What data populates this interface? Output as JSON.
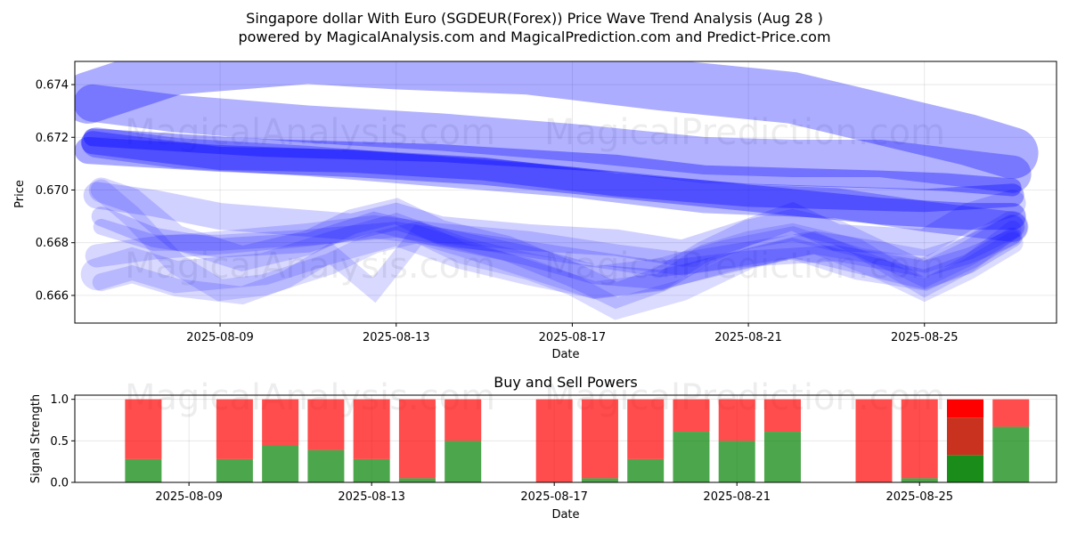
{
  "figure": {
    "title_line1": "Singapore dollar With Euro (SGDEUR(Forex)) Price Wave Trend Analysis (Aug 28 )",
    "title_line2": "powered by MagicalAnalysis.com and MagicalPrediction.com and Predict-Price.com",
    "watermarks": [
      "MagicalAnalysis.com",
      "MagicalPrediction.com"
    ]
  },
  "colors": {
    "wave": "#0000ff",
    "buy": "#008000",
    "sell": "#ff0000",
    "grid": "#b0b0b0"
  },
  "chart_data": [
    {
      "type": "line",
      "title": "",
      "xlabel": "Date",
      "ylabel": "Price",
      "x_tick_labels": [
        "2025-08-09",
        "2025-08-13",
        "2025-08-17",
        "2025-08-21",
        "2025-08-25"
      ],
      "x_tick_days": [
        9,
        13,
        17,
        21,
        25
      ],
      "xlim": [
        5.7,
        28.0
      ],
      "y_ticks": [
        0.666,
        0.668,
        0.67,
        0.672,
        0.674
      ],
      "y_tick_labels": [
        "0.666",
        "0.668",
        "0.670",
        "0.672",
        "0.674"
      ],
      "ylim": [
        0.66495,
        0.67488
      ],
      "series": [
        {
          "name": "wave-1",
          "x": [
            6.0,
            8.0,
            11.0,
            13.0,
            16.0,
            19.0,
            22.0,
            24.0,
            26.0,
            27.0
          ],
          "y": [
            0.6735,
            0.6746,
            0.675,
            0.6748,
            0.6746,
            0.674,
            0.6735,
            0.6727,
            0.6719,
            0.6714
          ]
        },
        {
          "name": "wave-2",
          "x": [
            6.0,
            9.0,
            12.0,
            15.0,
            18.0,
            21.0,
            24.0,
            26.0,
            27.0
          ],
          "y": [
            0.6715,
            0.6712,
            0.671,
            0.6707,
            0.6702,
            0.6697,
            0.6692,
            0.669,
            0.669
          ]
        },
        {
          "name": "wave-3",
          "x": [
            6.1,
            8.0,
            11.0,
            14.0,
            17.0,
            20.0,
            22.0,
            24.0,
            26.0,
            27.0
          ],
          "y": [
            0.6733,
            0.6729,
            0.6725,
            0.6722,
            0.6718,
            0.6713,
            0.6712,
            0.6712,
            0.6708,
            0.6706
          ]
        },
        {
          "name": "wave-4",
          "x": [
            6.1,
            9.0,
            12.0,
            15.0,
            18.0,
            21.0,
            23.0,
            25.0,
            26.0,
            27.0
          ],
          "y": [
            0.6718,
            0.6712,
            0.6711,
            0.6708,
            0.6702,
            0.6698,
            0.6697,
            0.6696,
            0.6697,
            0.6698
          ]
        },
        {
          "name": "wave-5",
          "x": [
            6.1,
            8.0,
            10.0,
            12.0,
            14.0,
            16.0,
            18.0,
            20.0,
            22.0,
            24.0,
            25.5,
            27.0
          ],
          "y": [
            0.672,
            0.6718,
            0.6716,
            0.6715,
            0.6714,
            0.6712,
            0.671,
            0.6706,
            0.6705,
            0.6704,
            0.6703,
            0.6701
          ]
        },
        {
          "name": "wave-6",
          "x": [
            6.2,
            8.0,
            11.0,
            14.0,
            17.0,
            20.0,
            23.0,
            25.0,
            27.0
          ],
          "y": [
            0.6718,
            0.6714,
            0.6711,
            0.6707,
            0.6703,
            0.6697,
            0.6695,
            0.669,
            0.6686
          ]
        },
        {
          "name": "wave-7",
          "x": [
            6.2,
            7.5,
            9.0,
            10.5,
            12.0,
            13.0,
            14.0,
            16.0,
            18.0,
            19.5,
            21.0,
            22.0,
            23.0,
            25.0,
            26.0,
            27.0
          ],
          "y": [
            0.6698,
            0.6695,
            0.669,
            0.6688,
            0.6686,
            0.669,
            0.6685,
            0.6682,
            0.668,
            0.6676,
            0.6684,
            0.669,
            0.6682,
            0.668,
            0.669,
            0.6695
          ]
        },
        {
          "name": "wave-8",
          "x": [
            6.2,
            7.5,
            9.0,
            11.0,
            12.5,
            14.0,
            16.0,
            18.0,
            19.5,
            21.0,
            22.5,
            24.0,
            25.0,
            26.0,
            27.0
          ],
          "y": [
            0.6675,
            0.6678,
            0.668,
            0.6683,
            0.6686,
            0.6683,
            0.668,
            0.6675,
            0.6672,
            0.6676,
            0.668,
            0.6676,
            0.6673,
            0.6678,
            0.6686
          ]
        },
        {
          "name": "wave-9",
          "x": [
            6.2,
            7.0,
            8.0,
            10.0,
            11.5,
            13.0,
            14.5,
            16.0,
            17.5,
            19.0,
            20.5,
            22.0,
            23.5,
            25.0,
            26.0,
            27.0
          ],
          "y": [
            0.6668,
            0.6672,
            0.6667,
            0.667,
            0.6678,
            0.6685,
            0.6676,
            0.667,
            0.6665,
            0.6668,
            0.6675,
            0.668,
            0.6672,
            0.6668,
            0.6676,
            0.6686
          ]
        },
        {
          "name": "wave-10",
          "x": [
            6.3,
            7.5,
            9.0,
            11.0,
            12.5,
            14.0,
            16.0,
            17.5,
            19.0,
            20.5,
            22.0,
            24.0,
            25.0,
            26.0,
            27.0
          ],
          "y": [
            0.669,
            0.6682,
            0.6678,
            0.668,
            0.6688,
            0.6682,
            0.6675,
            0.6668,
            0.6666,
            0.6672,
            0.6678,
            0.667,
            0.6666,
            0.6672,
            0.6682
          ]
        },
        {
          "name": "wave-11",
          "x": [
            6.3,
            7.0,
            8.0,
            9.5,
            11.0,
            12.0,
            13.0,
            14.0,
            15.5,
            17.0,
            18.0,
            19.0,
            20.0,
            21.0,
            22.0,
            23.0,
            24.0,
            25.0,
            26.0,
            27.0
          ],
          "y": [
            0.67,
            0.6696,
            0.6682,
            0.6674,
            0.668,
            0.6688,
            0.6692,
            0.6684,
            0.6678,
            0.6668,
            0.666,
            0.6666,
            0.6676,
            0.6684,
            0.6688,
            0.6684,
            0.6676,
            0.6668,
            0.6676,
            0.6686
          ]
        },
        {
          "name": "wave-12",
          "x": [
            6.3,
            7.0,
            8.0,
            9.0,
            10.0,
            11.5,
            12.5,
            13.5,
            14.5,
            16.0,
            17.0,
            18.0,
            19.5,
            21.0,
            22.5,
            24.0,
            25.0,
            26.0,
            27.0
          ],
          "y": [
            0.67,
            0.669,
            0.6672,
            0.6662,
            0.6664,
            0.6672,
            0.668,
            0.6684,
            0.6676,
            0.667,
            0.6664,
            0.6655,
            0.6662,
            0.6674,
            0.668,
            0.667,
            0.6662,
            0.667,
            0.668
          ]
        },
        {
          "name": "wave-13",
          "x": [
            6.3,
            7.0,
            8.0,
            9.5,
            10.5,
            11.5,
            12.5,
            13.5,
            14.5,
            16.0,
            17.5,
            19.0,
            20.0,
            21.0,
            22.0,
            23.5,
            25.0,
            26.0,
            27.0
          ],
          "y": [
            0.6665,
            0.6668,
            0.6663,
            0.666,
            0.6666,
            0.6676,
            0.6662,
            0.6683,
            0.6678,
            0.667,
            0.6662,
            0.6665,
            0.6676,
            0.6681,
            0.6684,
            0.6678,
            0.6663,
            0.6672,
            0.6685
          ]
        },
        {
          "name": "wave-14",
          "x": [
            6.3,
            7.5,
            9.0,
            11.0,
            13.0,
            15.0,
            17.0,
            19.0,
            21.0,
            23.0,
            25.0,
            26.0,
            27.0
          ],
          "y": [
            0.6686,
            0.668,
            0.668,
            0.6682,
            0.6685,
            0.668,
            0.6675,
            0.667,
            0.6674,
            0.6676,
            0.667,
            0.6675,
            0.6682
          ]
        }
      ]
    },
    {
      "type": "bar",
      "title": "Buy and Sell Powers",
      "xlabel": "Date",
      "ylabel": "Signal Strength",
      "x_tick_labels": [
        "2025-08-09",
        "2025-08-13",
        "2025-08-17",
        "2025-08-21",
        "2025-08-25"
      ],
      "x_tick_days": [
        9,
        13,
        17,
        21,
        25
      ],
      "xlim": [
        6.5,
        28.0
      ],
      "y_ticks": [
        0.0,
        0.5,
        1.0
      ],
      "y_tick_labels": [
        "0.0",
        "0.5",
        "1.0"
      ],
      "ylim": [
        0.0,
        1.05
      ],
      "days": [
        8,
        10,
        11,
        12,
        13,
        14,
        15,
        17,
        18,
        19,
        20,
        21,
        22,
        24,
        25,
        26,
        27
      ],
      "series": [
        {
          "name": "Buy",
          "values": [
            0.28,
            0.28,
            0.45,
            0.39,
            0.28,
            0.05,
            0.5,
            0.0,
            0.05,
            0.28,
            0.61,
            0.5,
            0.61,
            0.0,
            0.05,
            0.33,
            0.67
          ]
        },
        {
          "name": "Sell",
          "values": [
            0.72,
            0.72,
            0.55,
            0.61,
            0.72,
            0.95,
            0.5,
            1.0,
            0.95,
            0.72,
            0.39,
            0.5,
            0.39,
            1.0,
            0.95,
            0.67,
            0.33
          ]
        }
      ],
      "highlight_day": 26,
      "highlight_sell_split": [
        0.45,
        0.22
      ]
    }
  ]
}
